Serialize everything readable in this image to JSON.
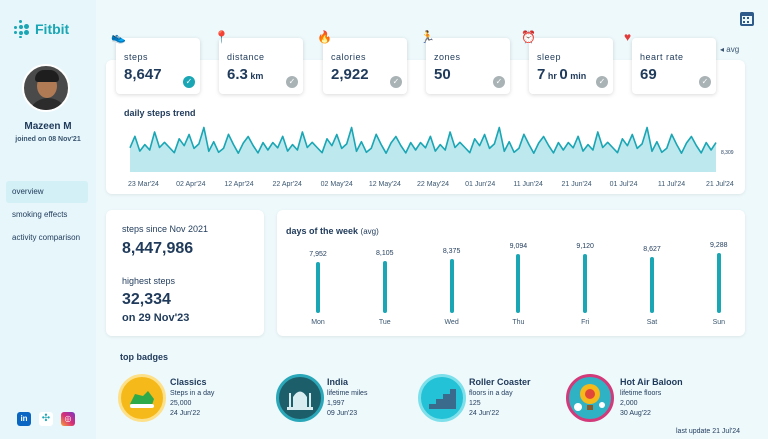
{
  "app": {
    "name": "Fitbit"
  },
  "user": {
    "name": "Mazeen M",
    "joined": "joined on  08 Nov'21"
  },
  "nav": [
    {
      "label": "overview",
      "active": true
    },
    {
      "label": "smoking effects",
      "active": false
    },
    {
      "label": "activity comparison",
      "active": false
    }
  ],
  "avg_toggle": "◂ avg",
  "metrics": [
    {
      "label": "steps",
      "value": "8,647",
      "unit": "",
      "icon": "shoes-icon",
      "done": true
    },
    {
      "label": "distance",
      "value": "6.3",
      "unit": " km",
      "icon": "map-pin-icon",
      "done": false
    },
    {
      "label": "calories",
      "value": "2,922",
      "unit": "",
      "icon": "flame-icon",
      "done": false
    },
    {
      "label": "zones",
      "value": "50",
      "unit": "",
      "icon": "runner-icon",
      "done": false
    },
    {
      "label": "sleep",
      "value": "7",
      "unit": " hr ",
      "value2": "0",
      "unit2": " min",
      "icon": "alarm-icon",
      "done": false
    },
    {
      "label": "heart rate",
      "value": "69",
      "unit": "",
      "icon": "heart-icon",
      "done": false
    }
  ],
  "trend": {
    "title": "daily steps trend",
    "last_value": "8,309",
    "x_ticks": [
      "23 Mar'24",
      "02 Apr'24",
      "12 Apr'24",
      "22 Apr'24",
      "02 May'24",
      "12 May'24",
      "22 May'24",
      "01 Jun'24",
      "11 Jun'24",
      "21 Jun'24",
      "01 Jul'24",
      "11 Jul'24",
      "21 Jul'24"
    ]
  },
  "stats": {
    "since_label": "steps since Nov 2021",
    "since_value": "8,447,986",
    "highest_label": "highest steps",
    "highest_value": "32,334",
    "highest_date": "on 29 Nov'23"
  },
  "days": {
    "title": "days of the week",
    "title_suffix": "(avg)",
    "items": [
      {
        "day": "Mon",
        "value": 7952,
        "label": "7,952"
      },
      {
        "day": "Tue",
        "value": 8105,
        "label": "8,105"
      },
      {
        "day": "Wed",
        "value": 8375,
        "label": "8,375"
      },
      {
        "day": "Thu",
        "value": 9094,
        "label": "9,094"
      },
      {
        "day": "Fri",
        "value": 9120,
        "label": "9,120"
      },
      {
        "day": "Sat",
        "value": 8627,
        "label": "8,627"
      },
      {
        "day": "Sun",
        "value": 9288,
        "label": "9,288"
      }
    ]
  },
  "badges": {
    "title": "top badges",
    "items": [
      {
        "name": "Classics",
        "line1": "Steps in a day",
        "line2": "25,000",
        "line3": "24 Jun'22",
        "color": "#f6b91a",
        "icon": "sneaker-badge-icon"
      },
      {
        "name": "India",
        "line1": "lifetime miles",
        "line2": "1,997",
        "line3": "09 Jun'23",
        "color": "#1d5e6b",
        "icon": "taj-mahal-badge-icon"
      },
      {
        "name": "Roller Coaster",
        "line1": "floors in a day",
        "line2": "125",
        "line3": "24 Jun'22",
        "color": "#23c2d6",
        "icon": "stairs-badge-icon"
      },
      {
        "name": "Hot Air Baloon",
        "line1": "lifetime floors",
        "line2": "2,000",
        "line3": "30 Aug'22",
        "color": "#d23a7a",
        "icon": "balloon-badge-icon"
      }
    ]
  },
  "last_update": "last update  21 Jul'24",
  "colors": {
    "accent": "#1aa6b4",
    "text": "#1f3a5a",
    "background": "#eef9fc"
  }
}
